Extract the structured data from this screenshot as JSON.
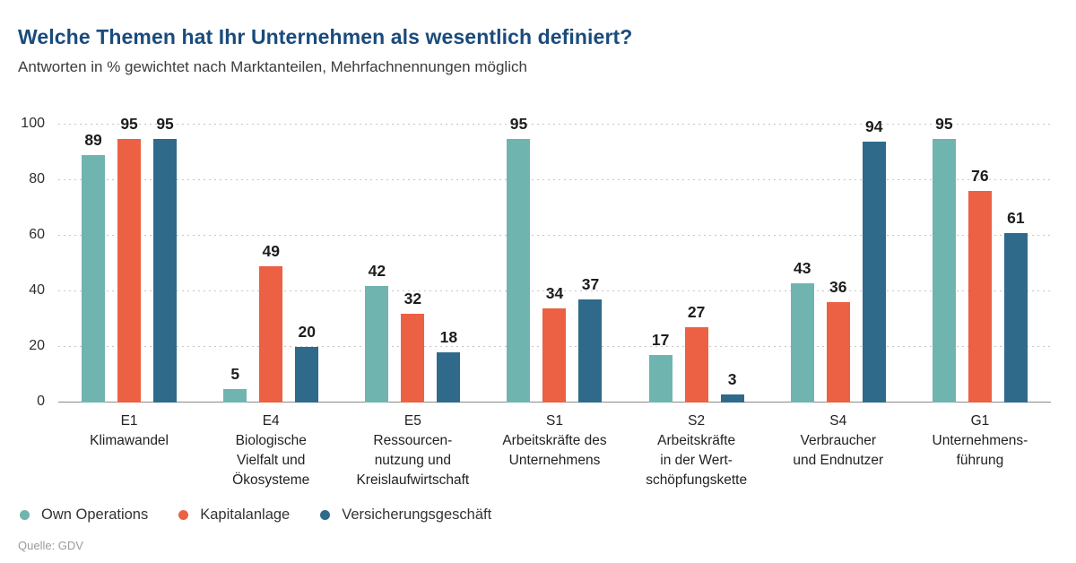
{
  "chart_data": {
    "type": "bar",
    "title": "Welche Themen hat Ihr Unternehmen als wesentlich definiert?",
    "subtitle": "Antworten in % gewichtet nach Marktanteilen, Mehrfachnennungen möglich",
    "source": "Quelle: GDV",
    "ylim": [
      0,
      100
    ],
    "yticks": [
      0,
      20,
      40,
      60,
      80,
      100
    ],
    "grid": "dotted-horizontal",
    "legend_position": "bottom-left",
    "categories": [
      {
        "code": "E1",
        "label_lines": [
          "Klimawandel"
        ]
      },
      {
        "code": "E4",
        "label_lines": [
          "Biologische",
          "Vielfalt und",
          "Ökosysteme"
        ]
      },
      {
        "code": "E5",
        "label_lines": [
          "Ressourcen-",
          "nutzung und",
          "Kreislaufwirtschaft"
        ]
      },
      {
        "code": "S1",
        "label_lines": [
          "Arbeitskräfte des",
          "Unternehmens"
        ]
      },
      {
        "code": "S2",
        "label_lines": [
          "Arbeitskräfte",
          "in der Wert-",
          "schöpfungskette"
        ]
      },
      {
        "code": "S4",
        "label_lines": [
          "Verbraucher",
          "und Endnutzer"
        ]
      },
      {
        "code": "G1",
        "label_lines": [
          "Unternehmens-",
          "führung"
        ]
      }
    ],
    "series": [
      {
        "name": "Own Operations",
        "color": "#70b4af",
        "values": [
          89,
          5,
          42,
          95,
          17,
          43,
          95
        ]
      },
      {
        "name": "Kapitalanlage",
        "color": "#ec6143",
        "values": [
          95,
          49,
          32,
          34,
          27,
          36,
          76
        ]
      },
      {
        "name": "Versicherungsgeschäft",
        "color": "#2f6a8b",
        "values": [
          95,
          20,
          18,
          37,
          3,
          94,
          61
        ]
      }
    ],
    "colors": {
      "title": "#1a4b7c",
      "axis_baseline": "#8a8a8a",
      "gridline": "#c6c6c6",
      "value_label": "#1d1d1b"
    }
  }
}
